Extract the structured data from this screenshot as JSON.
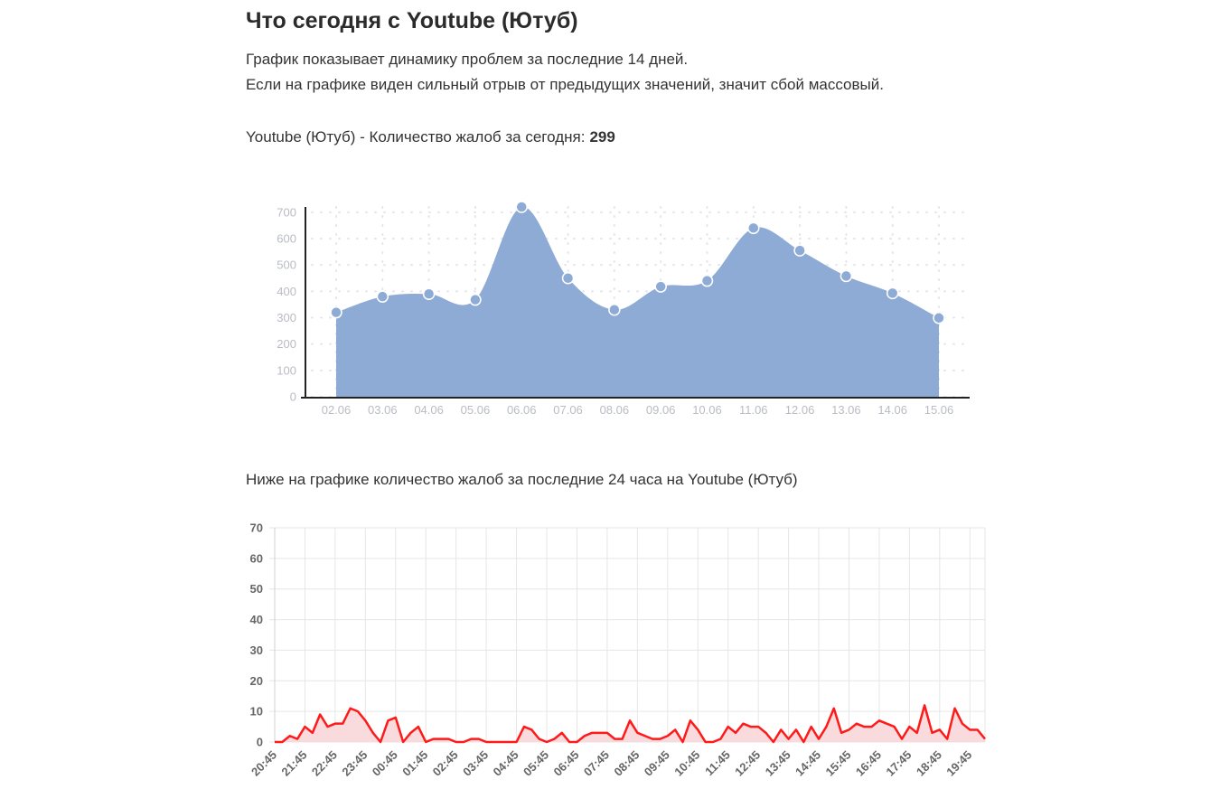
{
  "header": {
    "title": "Что сегодня с Youtube (Ютуб)"
  },
  "description": [
    "График показывает динамику проблем за последние 14 дней.",
    "Если на графике виден сильный отрыв от предыдущих значений, значит сбой массовый."
  ],
  "today": {
    "label": "Youtube (Ютуб) - Количество жалоб за сегодня:",
    "value": 299
  },
  "chart_data": [
    {
      "type": "area",
      "smooth": true,
      "markers": true,
      "color": "#8eabd6",
      "grid": "dotted",
      "categories": [
        "02.06",
        "03.06",
        "04.06",
        "05.06",
        "06.06",
        "07.06",
        "08.06",
        "09.06",
        "10.06",
        "11.06",
        "12.06",
        "13.06",
        "14.06",
        "15.06"
      ],
      "values": [
        320,
        380,
        390,
        368,
        720,
        450,
        330,
        418,
        440,
        640,
        555,
        458,
        393,
        299
      ],
      "ylim": [
        0,
        720
      ],
      "yticks": [
        0,
        100,
        200,
        300,
        400,
        500,
        600,
        700
      ]
    },
    {
      "type": "area",
      "smooth": false,
      "markers": false,
      "color": "#ff1a1a",
      "fill_color": "#f8d7d9",
      "grid": "solid",
      "title": "Ниже на графике количество жалоб за последние 24 часа на Youtube (Ютуб)",
      "categories": [
        "20:45",
        null,
        null,
        null,
        "21:45",
        null,
        null,
        null,
        "22:45",
        null,
        null,
        null,
        "23:45",
        null,
        null,
        null,
        "00:45",
        null,
        null,
        null,
        "01:45",
        null,
        null,
        null,
        "02:45",
        null,
        null,
        null,
        "03:45",
        null,
        null,
        null,
        "04:45",
        null,
        null,
        null,
        "05:45",
        null,
        null,
        null,
        "06:45",
        null,
        null,
        null,
        "07:45",
        null,
        null,
        null,
        "08:45",
        null,
        null,
        null,
        "09:45",
        null,
        null,
        null,
        "10:45",
        null,
        null,
        null,
        "11:45",
        null,
        null,
        null,
        "12:45",
        null,
        null,
        null,
        "13:45",
        null,
        null,
        null,
        "14:45",
        null,
        null,
        null,
        "15:45",
        null,
        null,
        null,
        "16:45",
        null,
        null,
        null,
        "17:45",
        null,
        null,
        null,
        "18:45",
        null,
        null,
        null,
        "19:45",
        null,
        null
      ],
      "values": [
        0,
        0,
        2,
        1,
        5,
        3,
        9,
        5,
        6,
        6,
        11,
        10,
        7,
        3,
        0,
        7,
        8,
        0,
        3,
        5,
        0,
        1,
        1,
        1,
        0,
        0,
        1,
        1,
        0,
        0,
        0,
        0,
        0,
        5,
        4,
        1,
        0,
        1,
        3,
        0,
        0,
        2,
        3,
        3,
        3,
        1,
        1,
        7,
        3,
        2,
        1,
        1,
        2,
        4,
        0,
        7,
        4,
        0,
        0,
        1,
        5,
        3,
        6,
        5,
        5,
        3,
        0,
        4,
        1,
        4,
        0,
        5,
        1,
        5,
        11,
        3,
        4,
        6,
        5,
        5,
        7,
        6,
        5,
        1,
        5,
        3,
        12,
        3,
        4,
        1,
        11,
        6,
        4,
        4,
        1
      ],
      "ylim": [
        0,
        70
      ],
      "yticks": [
        0,
        10,
        20,
        30,
        40,
        50,
        60,
        70
      ]
    }
  ]
}
